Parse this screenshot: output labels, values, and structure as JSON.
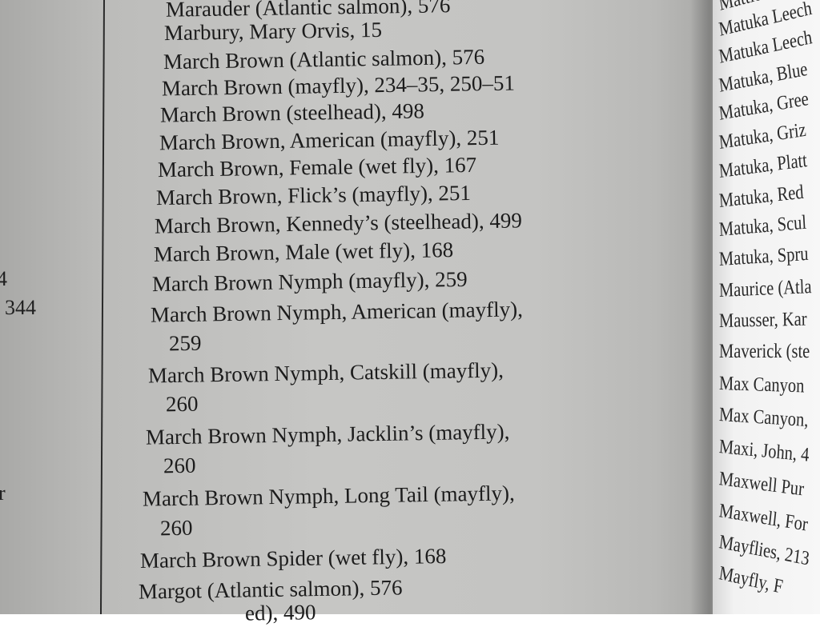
{
  "left_page_fragments": [
    "4",
    "344",
    "r"
  ],
  "index_entries": [
    "Marauder (Atlantic salmon), 576",
    "Marbury, Mary Orvis, 15",
    "March Brown (Atlantic salmon), 576",
    "March Brown (mayfly), 234–35, 250–51",
    "March Brown (steelhead), 498",
    "March Brown, American (mayfly), 251",
    "March Brown, Female (wet fly), 167",
    "March Brown, Flick’s (mayfly), 251",
    "March Brown, Kennedy’s (steelhead), 499",
    "March Brown, Male (wet fly), 168",
    "March Brown Nymph (mayfly), 259",
    "March Brown Nymph, American (mayfly),",
    "259",
    "March Brown Nymph, Catskill (mayfly),",
    "260",
    "March Brown Nymph, Jacklin’s (mayfly),",
    "260",
    "March Brown Nymph, Long Tail (mayfly),",
    "260",
    "March Brown Spider (wet fly), 168",
    "Margot (Atlantic salmon), 576",
    "                    ed), 490"
  ],
  "right_page_entries": [
    "Mattie",
    "Matuka Leech",
    "Matuka Leech",
    "Matuka, Blue",
    "Matuka, Gree",
    "Matuka, Griz",
    "Matuka, Platt",
    "Matuka, Red",
    "Matuka, Scul",
    "Matuka, Spru",
    "Maurice (Atla",
    "Mausser, Kar",
    "Maverick (ste",
    "Max Canyon",
    "Max Canyon,",
    "Maxi, John, 4",
    "Maxwell Pur",
    "Maxwell, For",
    "Mayflies, 213",
    "Mayfly, F"
  ]
}
